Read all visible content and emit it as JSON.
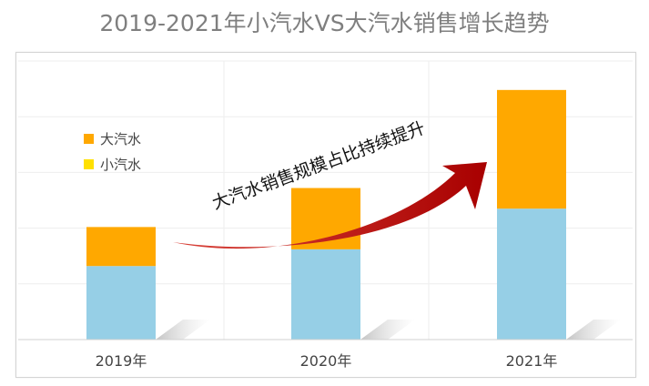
{
  "title": "2019-2021年小汽水VS大汽水销售增长趋势",
  "annotation": "大汽水销售规模占比持续提升",
  "colors": {
    "small": "#96cfe6",
    "large": "#ffa800",
    "small_legend": "#ffe000",
    "arrow": "#b30000",
    "grid": "#eeeeee"
  },
  "chart_data": {
    "type": "bar",
    "stacked": true,
    "categories": [
      "2019年",
      "2020年",
      "2021年"
    ],
    "series": [
      {
        "name": "小汽水",
        "values": [
          1.32,
          1.62,
          2.35
        ]
      },
      {
        "name": "大汽水",
        "values": [
          0.7,
          1.1,
          2.13
        ]
      }
    ],
    "ylim": [
      0,
      5
    ],
    "grid": true,
    "legend_position": "left",
    "legend": [
      {
        "name": "大汽水",
        "color": "#ffa800"
      },
      {
        "name": "小汽水",
        "color": "#ffe000"
      }
    ]
  }
}
